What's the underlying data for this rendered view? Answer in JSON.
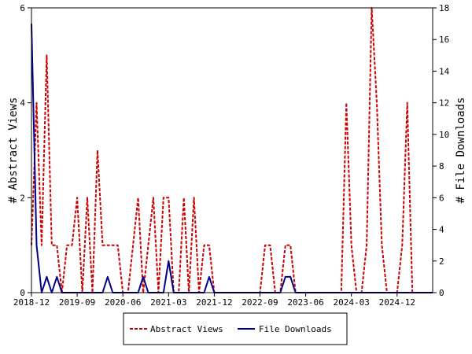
{
  "chart_data": {
    "type": "line",
    "ylabel_left": "# Abstract Views",
    "ylabel_right": "# File Downloads",
    "ylim_left": [
      0,
      6
    ],
    "ylim_right": [
      0,
      18
    ],
    "yticks_left": [
      "0",
      "2",
      "4",
      "6"
    ],
    "yticks_right": [
      "0",
      "2",
      "4",
      "6",
      "8",
      "10",
      "12",
      "14",
      "16",
      "18"
    ],
    "xticks": [
      "2018-12",
      "2019-09",
      "2020-06",
      "2021-03",
      "2021-12",
      "2022-09",
      "2023-06",
      "2024-03",
      "2024-12"
    ],
    "x_start": "2018-12",
    "x_end": "2025-07",
    "legend_position": "bottom",
    "series": [
      {
        "name": "Abstract Views",
        "axis": "left",
        "color": "#cc0000",
        "style": "dashed",
        "points": [
          [
            "2018-12",
            1
          ],
          [
            "2019-01",
            4
          ],
          [
            "2019-02",
            1
          ],
          [
            "2019-03",
            5
          ],
          [
            "2019-04",
            1
          ],
          [
            "2019-05",
            1
          ],
          [
            "2019-06",
            0
          ],
          [
            "2019-07",
            1
          ],
          [
            "2019-08",
            1
          ],
          [
            "2019-09",
            2
          ],
          [
            "2019-10",
            0
          ],
          [
            "2019-11",
            2
          ],
          [
            "2019-12",
            0
          ],
          [
            "2020-01",
            3
          ],
          [
            "2020-02",
            1
          ],
          [
            "2020-03",
            1
          ],
          [
            "2020-04",
            1
          ],
          [
            "2020-05",
            1
          ],
          [
            "2020-06",
            0
          ],
          [
            "2020-07",
            0
          ],
          [
            "2020-08",
            1
          ],
          [
            "2020-09",
            2
          ],
          [
            "2020-10",
            0
          ],
          [
            "2020-11",
            1
          ],
          [
            "2020-12",
            2
          ],
          [
            "2021-01",
            0
          ],
          [
            "2021-02",
            2
          ],
          [
            "2021-03",
            2
          ],
          [
            "2021-04",
            0
          ],
          [
            "2021-05",
            0
          ],
          [
            "2021-06",
            2
          ],
          [
            "2021-07",
            0
          ],
          [
            "2021-08",
            2
          ],
          [
            "2021-09",
            0
          ],
          [
            "2021-10",
            1
          ],
          [
            "2021-11",
            1
          ],
          [
            "2021-12",
            0
          ],
          [
            "2022-01",
            0
          ],
          [
            "2022-02",
            0
          ],
          [
            "2022-03",
            0
          ],
          [
            "2022-04",
            0
          ],
          [
            "2022-05",
            0
          ],
          [
            "2022-06",
            0
          ],
          [
            "2022-07",
            0
          ],
          [
            "2022-08",
            0
          ],
          [
            "2022-09",
            0
          ],
          [
            "2022-10",
            1
          ],
          [
            "2022-11",
            1
          ],
          [
            "2022-12",
            0
          ],
          [
            "2023-01",
            0
          ],
          [
            "2023-02",
            1
          ],
          [
            "2023-03",
            1
          ],
          [
            "2023-04",
            0
          ],
          [
            "2023-05",
            0
          ],
          [
            "2023-06",
            0
          ],
          [
            "2023-07",
            0
          ],
          [
            "2023-08",
            0
          ],
          [
            "2023-09",
            0
          ],
          [
            "2023-10",
            0
          ],
          [
            "2023-11",
            0
          ],
          [
            "2023-12",
            0
          ],
          [
            "2024-01",
            0
          ],
          [
            "2024-02",
            4
          ],
          [
            "2024-03",
            1
          ],
          [
            "2024-04",
            0
          ],
          [
            "2024-05",
            0
          ],
          [
            "2024-06",
            1
          ],
          [
            "2024-07",
            6
          ],
          [
            "2024-08",
            4
          ],
          [
            "2024-09",
            1
          ],
          [
            "2024-10",
            0
          ],
          [
            "2024-11",
            0
          ],
          [
            "2024-12",
            0
          ],
          [
            "2025-01",
            1
          ],
          [
            "2025-02",
            4
          ],
          [
            "2025-03",
            0
          ],
          [
            "2025-04",
            0
          ],
          [
            "2025-05",
            0
          ],
          [
            "2025-06",
            0
          ],
          [
            "2025-07",
            0
          ]
        ]
      },
      {
        "name": "File Downloads",
        "axis": "right",
        "color": "#00008b",
        "style": "solid",
        "points": [
          [
            "2018-12",
            17
          ],
          [
            "2019-01",
            3
          ],
          [
            "2019-02",
            0
          ],
          [
            "2019-03",
            1
          ],
          [
            "2019-04",
            0
          ],
          [
            "2019-05",
            1
          ],
          [
            "2019-06",
            0
          ],
          [
            "2019-07",
            0
          ],
          [
            "2019-08",
            0
          ],
          [
            "2019-09",
            0
          ],
          [
            "2019-10",
            0
          ],
          [
            "2019-11",
            0
          ],
          [
            "2019-12",
            0
          ],
          [
            "2020-01",
            0
          ],
          [
            "2020-02",
            0
          ],
          [
            "2020-03",
            1
          ],
          [
            "2020-04",
            0
          ],
          [
            "2020-05",
            0
          ],
          [
            "2020-06",
            0
          ],
          [
            "2020-07",
            0
          ],
          [
            "2020-08",
            0
          ],
          [
            "2020-09",
            0
          ],
          [
            "2020-10",
            1
          ],
          [
            "2020-11",
            0
          ],
          [
            "2020-12",
            0
          ],
          [
            "2021-01",
            0
          ],
          [
            "2021-02",
            0
          ],
          [
            "2021-03",
            2
          ],
          [
            "2021-04",
            0
          ],
          [
            "2021-05",
            0
          ],
          [
            "2021-06",
            0
          ],
          [
            "2021-07",
            0
          ],
          [
            "2021-08",
            0
          ],
          [
            "2021-09",
            0
          ],
          [
            "2021-10",
            0
          ],
          [
            "2021-11",
            1
          ],
          [
            "2021-12",
            0
          ],
          [
            "2022-01",
            0
          ],
          [
            "2022-02",
            0
          ],
          [
            "2022-03",
            0
          ],
          [
            "2022-04",
            0
          ],
          [
            "2022-05",
            0
          ],
          [
            "2022-06",
            0
          ],
          [
            "2022-07",
            0
          ],
          [
            "2022-08",
            0
          ],
          [
            "2022-09",
            0
          ],
          [
            "2022-10",
            0
          ],
          [
            "2022-11",
            0
          ],
          [
            "2022-12",
            0
          ],
          [
            "2023-01",
            0
          ],
          [
            "2023-02",
            1
          ],
          [
            "2023-03",
            1
          ],
          [
            "2023-04",
            0
          ],
          [
            "2023-05",
            0
          ],
          [
            "2023-06",
            0
          ],
          [
            "2023-07",
            0
          ],
          [
            "2023-08",
            0
          ],
          [
            "2023-09",
            0
          ],
          [
            "2023-10",
            0
          ],
          [
            "2023-11",
            0
          ],
          [
            "2023-12",
            0
          ],
          [
            "2024-01",
            0
          ],
          [
            "2024-02",
            0
          ],
          [
            "2024-03",
            0
          ],
          [
            "2024-04",
            0
          ],
          [
            "2024-05",
            0
          ],
          [
            "2024-06",
            0
          ],
          [
            "2024-07",
            0
          ],
          [
            "2024-08",
            0
          ],
          [
            "2024-09",
            0
          ],
          [
            "2024-10",
            0
          ],
          [
            "2024-11",
            0
          ],
          [
            "2024-12",
            0
          ],
          [
            "2025-01",
            0
          ],
          [
            "2025-02",
            0
          ],
          [
            "2025-03",
            0
          ],
          [
            "2025-04",
            0
          ],
          [
            "2025-05",
            0
          ],
          [
            "2025-06",
            0
          ],
          [
            "2025-07",
            0
          ]
        ]
      }
    ]
  }
}
